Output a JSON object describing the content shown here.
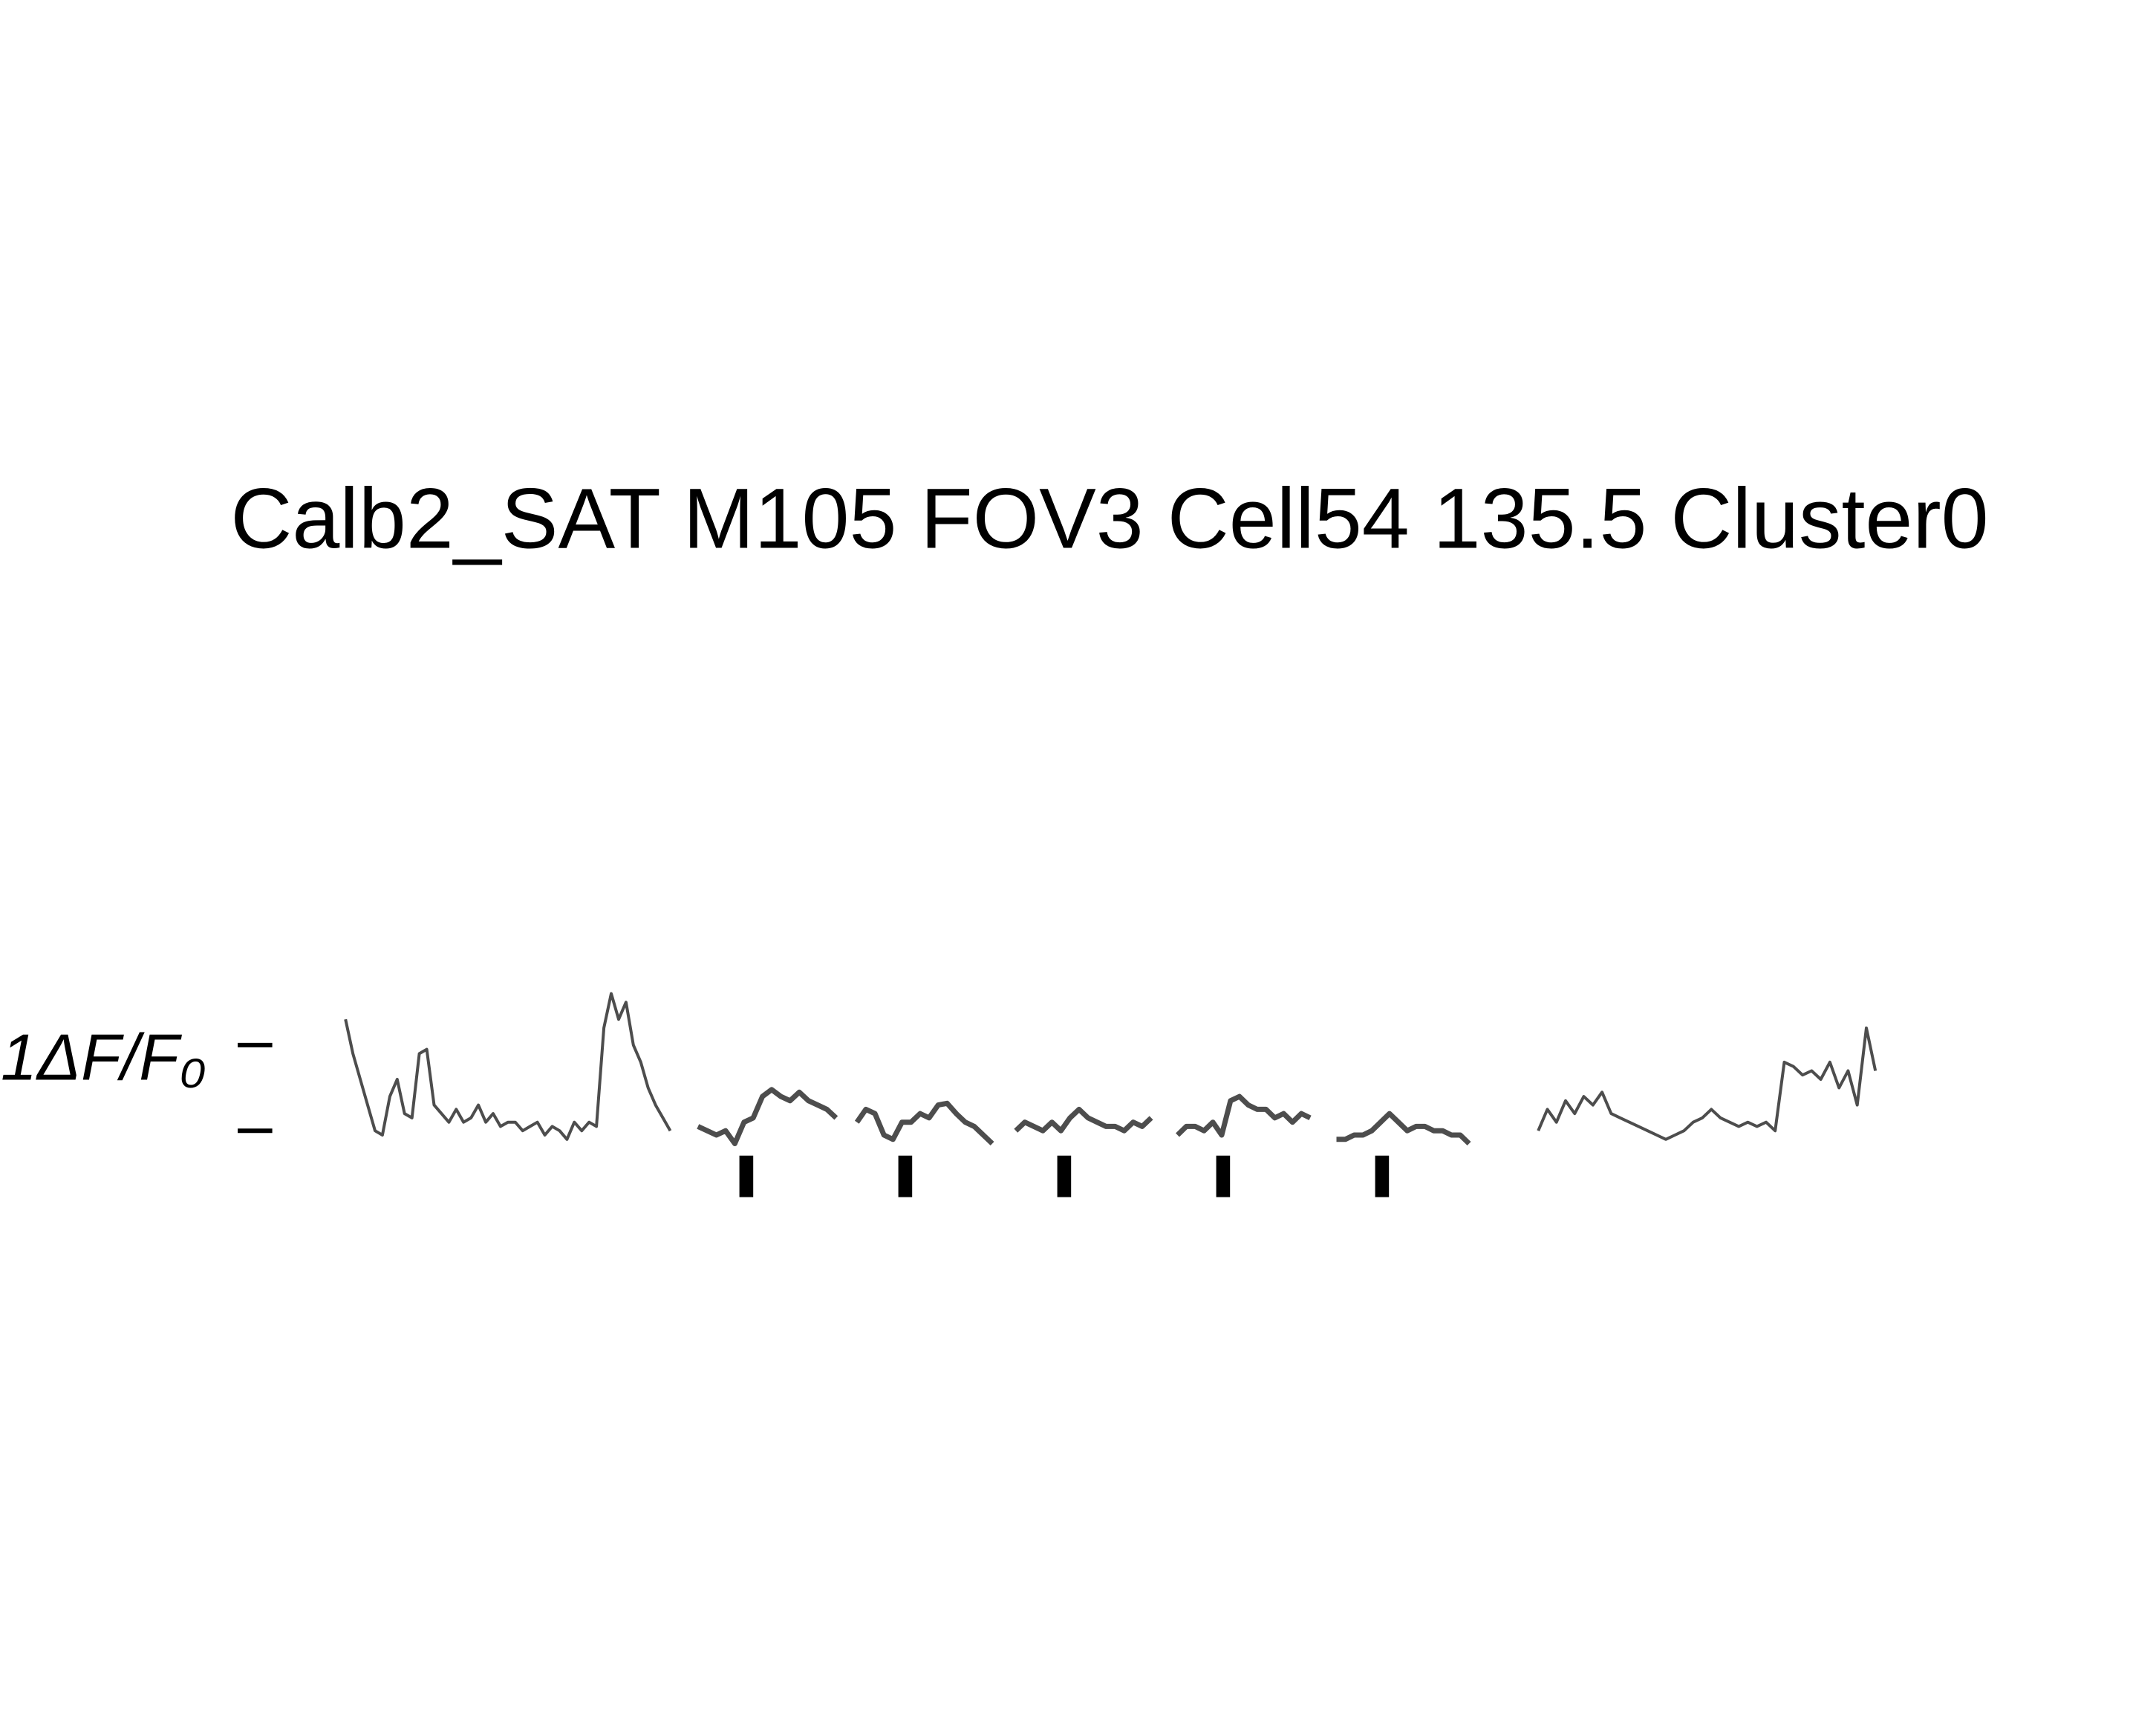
{
  "chart_data": {
    "type": "line",
    "title": "Calb2_SAT M105 FOV3 Cell54 135.5 Cluster0",
    "ylabel": "1ΔF/F₀",
    "ylim": [
      -1,
      2
    ],
    "yticks": [
      0,
      1
    ],
    "series": [
      {
        "color": "#4d4d4d",
        "values": [
          1.3,
          0.9,
          0.6,
          0.3,
          0.0,
          -0.05,
          0.4,
          0.6,
          0.2,
          0.15,
          0.9,
          0.95,
          0.3,
          0.2,
          0.1,
          0.25,
          0.1,
          0.15,
          0.3,
          0.1,
          0.2,
          0.05,
          0.1,
          0.1,
          0.0,
          0.05,
          0.1,
          -0.05,
          0.05,
          0.0,
          -0.1,
          0.1,
          0.0,
          0.1,
          0.05,
          1.2,
          1.6,
          1.3,
          1.5,
          1.0,
          0.8,
          0.5,
          0.3,
          0.15,
          0.0
        ]
      },
      {
        "color": "#4d4d4d",
        "values": [
          0.05,
          0,
          -0.05,
          0,
          -0.15,
          0.1,
          0.15,
          0.4,
          0.48,
          0.4,
          0.35,
          0.45,
          0.35,
          0.3,
          0.25,
          0.15
        ]
      },
      {
        "color": "#4d4d4d",
        "values": [
          0.1,
          0.25,
          0.2,
          -0.05,
          -0.1,
          0.1,
          0.1,
          0.2,
          0.15,
          0.3,
          0.32,
          0.2,
          0.1,
          0.05,
          -0.05,
          -0.15
        ]
      },
      {
        "color": "#4d4d4d",
        "values": [
          0.0,
          0.1,
          0.05,
          0.0,
          0.1,
          0.0,
          0.15,
          0.25,
          0.15,
          0.1,
          0.05,
          0.05,
          0.0,
          0.1,
          0.05,
          0.15
        ]
      },
      {
        "color": "#4d4d4d",
        "values": [
          -0.05,
          0.05,
          0.05,
          0.0,
          0.1,
          -0.05,
          0.35,
          0.4,
          0.3,
          0.25,
          0.25,
          0.15,
          0.2,
          0.1,
          0.2,
          0.15
        ]
      },
      {
        "color": "#4d4d4d",
        "values": [
          -0.1,
          -0.1,
          -0.05,
          -0.05,
          0.0,
          0.1,
          0.2,
          0.1,
          0.0,
          0.05,
          0.05,
          0.0,
          0.0,
          -0.05,
          -0.05,
          -0.15
        ]
      },
      {
        "color": "#4d4d4d",
        "values": [
          0.0,
          0.25,
          0.1,
          0.35,
          0.2,
          0.4,
          0.3,
          0.45,
          0.2,
          0.15,
          0.1,
          0.05,
          0.0,
          -0.05,
          -0.1,
          -0.05,
          0.0,
          0.1,
          0.15,
          0.25,
          0.15,
          0.1,
          0.05,
          0.1,
          0.05,
          0.1,
          0.0,
          0.8,
          0.75,
          0.65,
          0.7,
          0.6,
          0.8,
          0.5,
          0.7,
          0.3,
          1.2,
          0.7
        ]
      }
    ]
  }
}
